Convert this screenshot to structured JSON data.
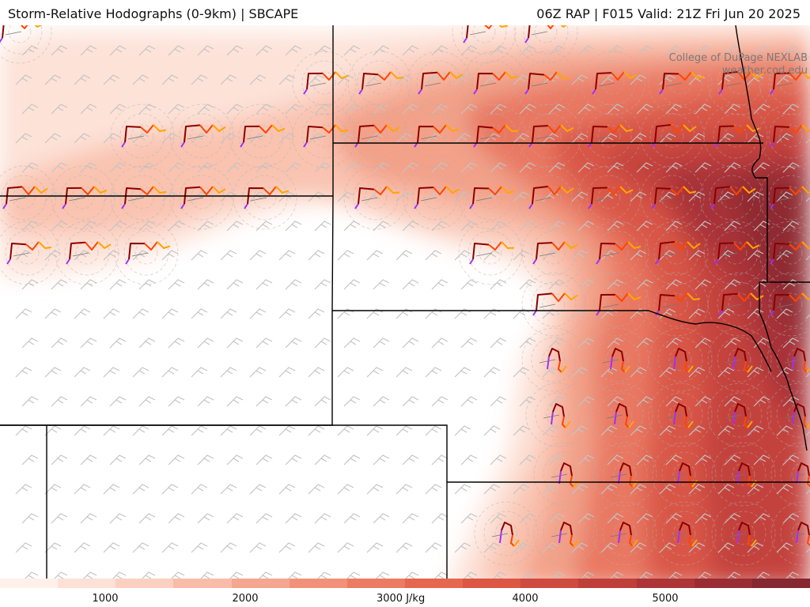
{
  "header": {
    "title_left": "Storm-Relative Hodographs (0-9km) | SBCAPE",
    "title_right": "06Z RAP | F015 Valid: 21Z Fri Jun 20 2025"
  },
  "credit": {
    "line1": "College of DuPage NEXLAB",
    "line2": "weather.cod.edu"
  },
  "colorbar": {
    "unit": "J/kg",
    "ticks": [
      {
        "value": 1000,
        "label": "1000"
      },
      {
        "value": 2000,
        "label": "2000"
      },
      {
        "value": 3000,
        "label": "3000 J/kg"
      },
      {
        "value": 4000,
        "label": "4000"
      },
      {
        "value": 5000,
        "label": "5000"
      }
    ],
    "range": [
      500,
      6000
    ],
    "colors": [
      "#fff0ea",
      "#fde0d6",
      "#fbd0c0",
      "#f8bca9",
      "#f5a690",
      "#f29179",
      "#ec7b64",
      "#e5674f",
      "#dc5643",
      "#cf4a3f",
      "#bf3f3b",
      "#ad3538",
      "#9a2d33",
      "#852830"
    ]
  },
  "hodograph_colors": {
    "0-1km": "#8b0000",
    "1-3km": "#ff4500",
    "3-6km": "#ffa500",
    "6-9km": "#9b30ff"
  },
  "wind_barb_color": "#c4c4c4",
  "boundary_color": "#000000"
}
